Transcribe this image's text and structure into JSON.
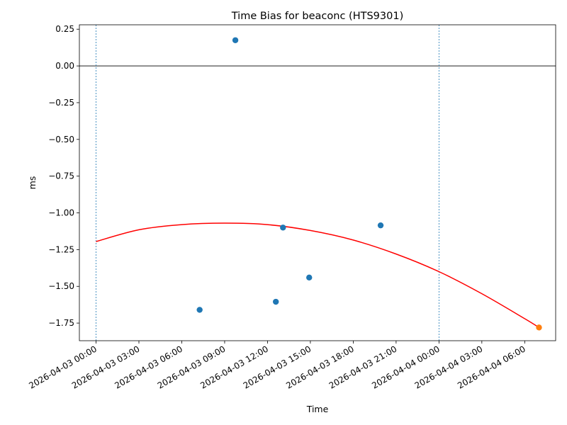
{
  "chart_data": {
    "type": "scatter",
    "title": "Time Bias for beaconc (HTS9301)",
    "xlabel": "Time",
    "ylabel": "ms",
    "x_axis": {
      "kind": "datetime",
      "range": [
        "2026-04-02 22:50",
        "2026-04-04 08:10"
      ],
      "ticks": [
        "2026-04-03 00:00",
        "2026-04-03 03:00",
        "2026-04-03 06:00",
        "2026-04-03 09:00",
        "2026-04-03 12:00",
        "2026-04-03 15:00",
        "2026-04-03 18:00",
        "2026-04-03 21:00",
        "2026-04-04 00:00",
        "2026-04-04 03:00",
        "2026-04-04 06:00"
      ]
    },
    "y_axis": {
      "range": [
        -1.87,
        0.28
      ],
      "ticks": [
        0.25,
        0.0,
        -0.25,
        -0.5,
        -0.75,
        -1.0,
        -1.25,
        -1.5,
        -1.75
      ],
      "tick_labels": [
        "0.25",
        "0.00",
        "−0.25",
        "−0.50",
        "−0.75",
        "−1.00",
        "−1.25",
        "−1.50",
        "−1.75"
      ]
    },
    "grid": false,
    "series": [
      {
        "kind": "points",
        "color": "#1f77b4",
        "points": [
          {
            "x": "2026-04-03 07:15",
            "y": -1.66
          },
          {
            "x": "2026-04-03 09:45",
            "y": 0.175
          },
          {
            "x": "2026-04-03 12:35",
            "y": -1.605
          },
          {
            "x": "2026-04-03 13:05",
            "y": -1.1
          },
          {
            "x": "2026-04-03 14:55",
            "y": -1.44
          },
          {
            "x": "2026-04-03 19:55",
            "y": -1.085
          }
        ]
      },
      {
        "kind": "points",
        "color": "#ff7f0e",
        "points": [
          {
            "x": "2026-04-04 07:00",
            "y": -1.78
          }
        ]
      },
      {
        "kind": "curve",
        "color": "#ff0000",
        "points": [
          {
            "x": "2026-04-03 00:00",
            "y": -1.195
          },
          {
            "x": "2026-04-03 03:00",
            "y": -1.115
          },
          {
            "x": "2026-04-03 06:00",
            "y": -1.08
          },
          {
            "x": "2026-04-03 09:00",
            "y": -1.07
          },
          {
            "x": "2026-04-03 12:00",
            "y": -1.08
          },
          {
            "x": "2026-04-03 15:00",
            "y": -1.12
          },
          {
            "x": "2026-04-03 18:00",
            "y": -1.185
          },
          {
            "x": "2026-04-03 21:00",
            "y": -1.28
          },
          {
            "x": "2026-04-04 00:00",
            "y": -1.4
          },
          {
            "x": "2026-04-04 03:00",
            "y": -1.55
          },
          {
            "x": "2026-04-04 06:00",
            "y": -1.72
          },
          {
            "x": "2026-04-04 07:00",
            "y": -1.78
          }
        ]
      }
    ],
    "reference_lines": [
      {
        "orientation": "horizontal",
        "y": 0.0,
        "color": "#000000",
        "style": "solid"
      },
      {
        "orientation": "vertical",
        "x": "2026-04-03 00:00",
        "color": "#1f77b4",
        "style": "dashed"
      },
      {
        "orientation": "vertical",
        "x": "2026-04-04 00:00",
        "color": "#1f77b4",
        "style": "dashed"
      }
    ]
  }
}
